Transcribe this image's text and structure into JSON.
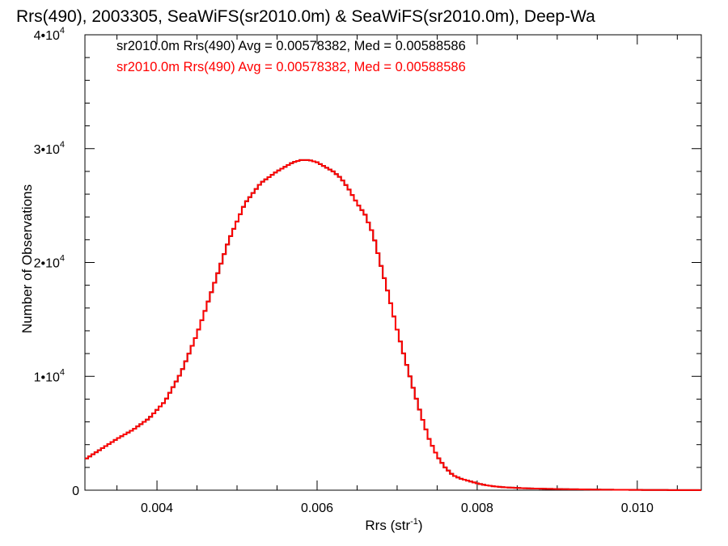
{
  "chart_data": {
    "type": "histogram",
    "title": "Rrs(490), 2003305, SeaWiFS(sr2010.0m) & SeaWiFS(sr2010.0m), Deep-Wa",
    "xlabel": "Rrs (str",
    "xlabel_sup": "-1",
    "xlabel_suffix": ")",
    "ylabel": "Number of Observations",
    "xlim": [
      0.0031,
      0.0108
    ],
    "ylim": [
      0,
      40000
    ],
    "grid": false,
    "legend_position": "top-left",
    "x_ticks": [
      {
        "value": 0.004,
        "label": "0.004"
      },
      {
        "value": 0.006,
        "label": "0.006"
      },
      {
        "value": 0.008,
        "label": "0.008"
      },
      {
        "value": 0.01,
        "label": "0.010"
      }
    ],
    "y_ticks": [
      {
        "value": 0,
        "mant": "0",
        "exp": ""
      },
      {
        "value": 10000,
        "mant": "1•10",
        "exp": "4"
      },
      {
        "value": 20000,
        "mant": "2•10",
        "exp": "4"
      },
      {
        "value": 30000,
        "mant": "3•10",
        "exp": "4"
      },
      {
        "value": 40000,
        "mant": "4•10",
        "exp": "4"
      }
    ],
    "series": [
      {
        "name": "sr2010.0m Rrs(490) Avg = 0.00578382, Med = 0.00588586",
        "color": "#000000",
        "x": [
          0.0031,
          0.0033,
          0.0035,
          0.0037,
          0.0039,
          0.0041,
          0.0043,
          0.0045,
          0.0047,
          0.0049,
          0.0051,
          0.0053,
          0.0055,
          0.0057,
          0.0058,
          0.0059,
          0.006,
          0.0061,
          0.0062,
          0.0063,
          0.0064,
          0.0065,
          0.0066,
          0.0067,
          0.0068,
          0.0069,
          0.007,
          0.0071,
          0.0072,
          0.0073,
          0.0074,
          0.0075,
          0.0076,
          0.0077,
          0.0078,
          0.0079,
          0.008,
          0.0081,
          0.0082,
          0.0083,
          0.0084,
          0.0086,
          0.0088,
          0.009,
          0.0092,
          0.0094,
          0.0096,
          0.0098,
          0.01,
          0.0102,
          0.0104,
          0.0106,
          0.0108
        ],
        "values": [
          2700,
          3600,
          4500,
          5300,
          6300,
          7800,
          10300,
          13700,
          17800,
          22000,
          25200,
          27000,
          28000,
          28800,
          29000,
          29000,
          28800,
          28400,
          28000,
          27400,
          26400,
          25200,
          24200,
          22500,
          19700,
          17000,
          14100,
          11500,
          9000,
          6600,
          4500,
          3000,
          2000,
          1300,
          1000,
          800,
          600,
          450,
          350,
          280,
          230,
          170,
          130,
          100,
          80,
          60,
          45,
          35,
          25,
          18,
          12,
          8,
          5
        ]
      },
      {
        "name": "sr2010.0m Rrs(490) Avg = 0.00578382, Med = 0.00588586",
        "color": "#ff0000",
        "x": [
          0.0031,
          0.0033,
          0.0035,
          0.0037,
          0.0039,
          0.0041,
          0.0043,
          0.0045,
          0.0047,
          0.0049,
          0.0051,
          0.0053,
          0.0055,
          0.0057,
          0.0058,
          0.0059,
          0.006,
          0.0061,
          0.0062,
          0.0063,
          0.0064,
          0.0065,
          0.0066,
          0.0067,
          0.0068,
          0.0069,
          0.007,
          0.0071,
          0.0072,
          0.0073,
          0.0074,
          0.0075,
          0.0076,
          0.0077,
          0.0078,
          0.0079,
          0.008,
          0.0081,
          0.0082,
          0.0083,
          0.0084,
          0.0086,
          0.0088,
          0.009,
          0.0092,
          0.0094,
          0.0096,
          0.0098,
          0.01,
          0.0102,
          0.0104,
          0.0106,
          0.0108
        ],
        "values": [
          2700,
          3600,
          4500,
          5300,
          6300,
          7800,
          10300,
          13700,
          17800,
          22000,
          25200,
          27000,
          28000,
          28800,
          29000,
          29000,
          28800,
          28400,
          28000,
          27400,
          26400,
          25200,
          24200,
          22500,
          19700,
          17000,
          14100,
          11500,
          9000,
          6600,
          4500,
          3000,
          2000,
          1300,
          1000,
          800,
          600,
          450,
          350,
          280,
          230,
          170,
          130,
          100,
          80,
          60,
          45,
          35,
          25,
          18,
          12,
          8,
          5
        ]
      }
    ]
  }
}
